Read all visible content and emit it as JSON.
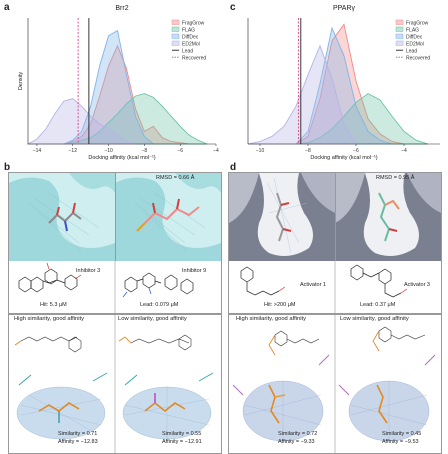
{
  "panels": {
    "a": {
      "letter": "a",
      "title": "Brr2"
    },
    "b": {
      "letter": "b"
    },
    "c": {
      "letter": "c",
      "title": "PPARγ"
    },
    "d": {
      "letter": "d"
    }
  },
  "chart_data": [
    {
      "type": "area",
      "title": "Brr2",
      "xlabel": "Docking affinity (kcal mol⁻¹)",
      "ylabel": "Density",
      "xlim": [
        -14.5,
        -4
      ],
      "xticks": [
        -14,
        -12,
        -10,
        -8,
        -6,
        -4
      ],
      "grid": false,
      "legend_position": "top-right",
      "series": [
        {
          "name": "FragGrow",
          "color": "#f08a8a",
          "x": [
            -12.5,
            -12,
            -11.5,
            -11,
            -10.5,
            -10,
            -9.5,
            -9,
            -8.5,
            -8,
            -7.5,
            -7,
            -6.5,
            -6,
            -5.5
          ],
          "values": [
            0.0,
            0.02,
            0.06,
            0.16,
            0.38,
            0.62,
            0.78,
            0.6,
            0.28,
            0.1,
            0.14,
            0.05,
            0.02,
            0.01,
            0.0
          ]
        },
        {
          "name": "FLAG",
          "color": "#6cc4a4",
          "x": [
            -12.5,
            -12,
            -11.5,
            -11,
            -10.5,
            -10,
            -9.5,
            -9,
            -8.5,
            -8,
            -7.5,
            -7,
            -6.5,
            -6,
            -5.5,
            -5,
            -4.5
          ],
          "values": [
            0.0,
            0.01,
            0.03,
            0.05,
            0.1,
            0.17,
            0.24,
            0.32,
            0.38,
            0.4,
            0.37,
            0.3,
            0.22,
            0.14,
            0.07,
            0.03,
            0.0
          ]
        },
        {
          "name": "DiffDec",
          "color": "#7fb4e8",
          "x": [
            -12.5,
            -12,
            -11.5,
            -11,
            -10.5,
            -10,
            -9.5,
            -9,
            -8.5,
            -8,
            -7.5
          ],
          "values": [
            0.0,
            0.03,
            0.1,
            0.3,
            0.62,
            0.86,
            0.9,
            0.55,
            0.22,
            0.06,
            0.0
          ]
        },
        {
          "name": "ED2Mol",
          "color": "#b4b4e6",
          "x": [
            -14.5,
            -14,
            -13.5,
            -13,
            -12.5,
            -12,
            -11.5,
            -11,
            -10.5,
            -10,
            -9.5,
            -9,
            -8.5
          ],
          "values": [
            0.0,
            0.04,
            0.12,
            0.24,
            0.34,
            0.36,
            0.3,
            0.22,
            0.16,
            0.12,
            0.07,
            0.02,
            0.0
          ]
        }
      ],
      "markers": [
        {
          "name": "Lead",
          "x": -11.1,
          "color": "#222222",
          "style": "solid"
        },
        {
          "name": "Recovered",
          "x": -11.7,
          "color": "#e0408a",
          "style": "dashed"
        }
      ]
    },
    {
      "type": "area",
      "title": "PPARγ",
      "xlabel": "Docking affinity (kcal mol⁻¹)",
      "ylabel": "",
      "xlim": [
        -10.5,
        -2.5
      ],
      "xticks": [
        -10,
        -8,
        -6,
        -4
      ],
      "grid": false,
      "legend_position": "top-right",
      "series": [
        {
          "name": "FragGrow",
          "color": "#f08a8a",
          "x": [
            -8.5,
            -8,
            -7.5,
            -7,
            -6.5,
            -6,
            -5.5,
            -5,
            -4.5,
            -4
          ],
          "values": [
            0.0,
            0.06,
            0.36,
            0.82,
            0.95,
            0.5,
            0.2,
            0.08,
            0.02,
            0.0
          ]
        },
        {
          "name": "FLAG",
          "color": "#6cc4a4",
          "x": [
            -8.5,
            -8,
            -7.5,
            -7,
            -6.5,
            -6,
            -5.5,
            -5,
            -4.5,
            -4,
            -3.5,
            -3
          ],
          "values": [
            0.0,
            0.01,
            0.05,
            0.12,
            0.22,
            0.33,
            0.4,
            0.35,
            0.22,
            0.1,
            0.03,
            0.0
          ]
        },
        {
          "name": "DiffDec",
          "color": "#7fb4e8",
          "x": [
            -8.5,
            -8,
            -7.5,
            -7,
            -6.5,
            -6,
            -5.5,
            -5,
            -4.5
          ],
          "values": [
            0.0,
            0.1,
            0.48,
            0.92,
            0.7,
            0.3,
            0.1,
            0.03,
            0.0
          ]
        },
        {
          "name": "ED2Mol",
          "color": "#b4b4e6",
          "x": [
            -10.5,
            -10,
            -9.5,
            -9,
            -8.5,
            -8,
            -7.5,
            -7,
            -6.5,
            -6
          ],
          "values": [
            0.0,
            0.02,
            0.06,
            0.14,
            0.3,
            0.55,
            0.78,
            0.52,
            0.16,
            0.0
          ]
        }
      ],
      "markers": [
        {
          "name": "Lead",
          "x": -8.3,
          "color": "#222222",
          "style": "solid"
        },
        {
          "name": "Recovered",
          "x": -8.4,
          "color": "#e0408a",
          "style": "dashed"
        }
      ]
    }
  ],
  "panel_b": {
    "rmsd": "RMSD = 0.66 Å",
    "inhibitor_left": "Inhibitor 3",
    "inhibitor_right": "Inhibitor 9",
    "hit": "Hit: 5.3 μM",
    "lead": "Lead: 0.079 μM",
    "sub_left": "High similarity, good affinity",
    "sub_right": "Low similarity, good affinity",
    "left_similarity": "Similarity = 0.71",
    "left_affinity": "Affinity = −12.83",
    "right_similarity": "Similarity = 0.55",
    "right_affinity": "Affinity = −12.91"
  },
  "panel_d": {
    "rmsd": "RMSD = 0.95 Å",
    "activator_left": "Activator 1",
    "activator_right": "Activator 3",
    "hit": "Hit: >200 μM",
    "lead": "Lead: 0.37 μM",
    "sub_left": "High similarity, good affinity",
    "sub_right": "Low similarity, good affinity",
    "left_similarity": "Similarity = 0.72",
    "left_affinity": "Affinity = −9.33",
    "right_similarity": "Similarity = 0.45",
    "right_affinity": "Affinity = −9.53"
  }
}
